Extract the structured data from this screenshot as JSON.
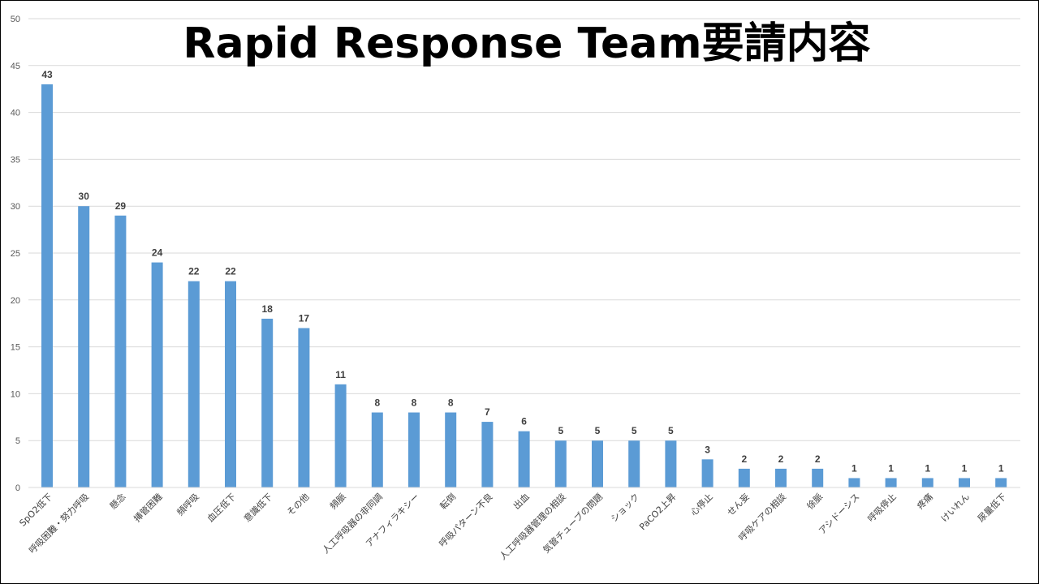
{
  "chart_data": {
    "type": "bar",
    "title": "Rapid Response Team要請内容",
    "categories": [
      "SpO2低下",
      "呼吸困難・努力呼吸",
      "懸念",
      "挿管困難",
      "頻呼吸",
      "血圧低下",
      "意識低下",
      "その他",
      "頻脈",
      "人工呼吸器の非同調",
      "アナフィラキシー",
      "転倒",
      "呼吸パターン不良",
      "出血",
      "人工呼吸器管理の相談",
      "気管チューブの問題",
      "ショック",
      "PaCO2上昇",
      "心停止",
      "せん妄",
      "呼吸ケアの相談",
      "徐脈",
      "アシドーシス",
      "呼吸停止",
      "疼痛",
      "けいれん",
      "尿量低下"
    ],
    "values": [
      43,
      30,
      29,
      24,
      22,
      22,
      18,
      17,
      11,
      8,
      8,
      8,
      7,
      6,
      5,
      5,
      5,
      5,
      3,
      2,
      2,
      2,
      1,
      1,
      1,
      1,
      1
    ],
    "ylim": [
      0,
      50
    ],
    "yticks": [
      0,
      5,
      10,
      15,
      20,
      25,
      30,
      35,
      40,
      45,
      50
    ],
    "bar_color": "#5B9BD5",
    "grid": true,
    "xlabel": "",
    "ylabel": ""
  }
}
